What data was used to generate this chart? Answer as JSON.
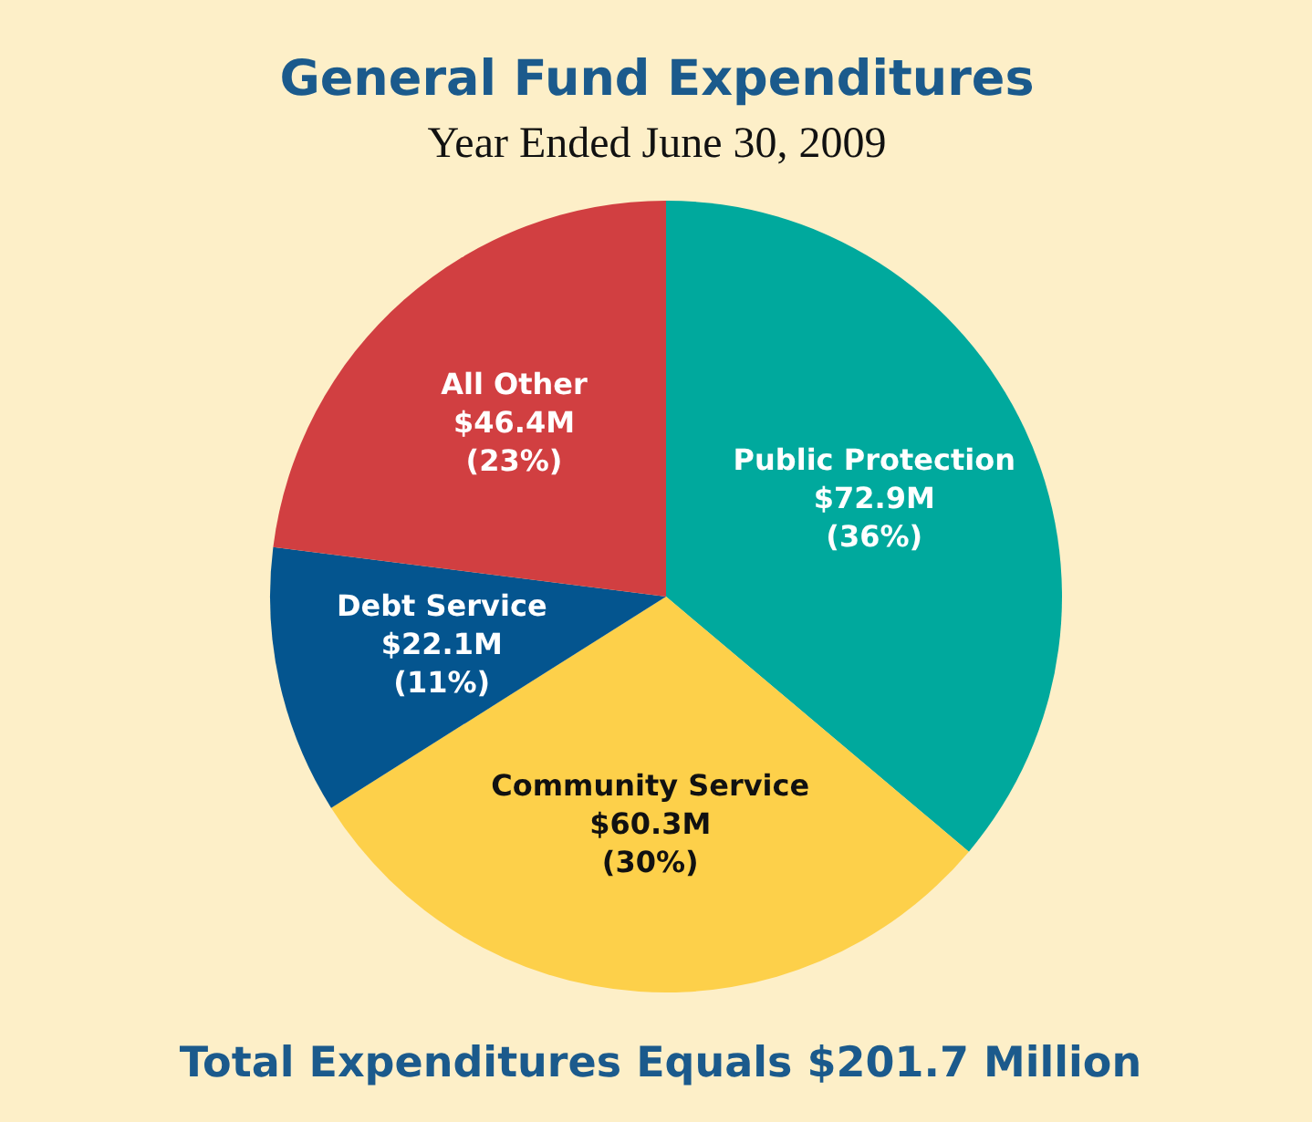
{
  "chart_data": {
    "type": "pie",
    "title": "General Fund Expenditures",
    "subtitle": "Year Ended June 30, 2009",
    "categories": [
      "Public Protection",
      "Community Service",
      "Debt Service",
      "All Other"
    ],
    "values": [
      72.9,
      60.3,
      22.1,
      46.4
    ],
    "colors": [
      "#00a99d",
      "#fdd04a",
      "#04558f",
      "#d13f41"
    ],
    "value_labels": [
      "$72.9M",
      "$60.3M",
      "$22.1M",
      "$46.4M"
    ],
    "annotations": [
      {
        "text": "(36%)",
        "x": "Public Protection"
      },
      {
        "text": "(30%)",
        "x": "Community Service"
      },
      {
        "text": "(11%)",
        "x": "Debt Service"
      },
      {
        "text": "(23%)",
        "x": "All Other"
      },
      "Total Expenditures Equals $201.7 Million"
    ]
  }
}
